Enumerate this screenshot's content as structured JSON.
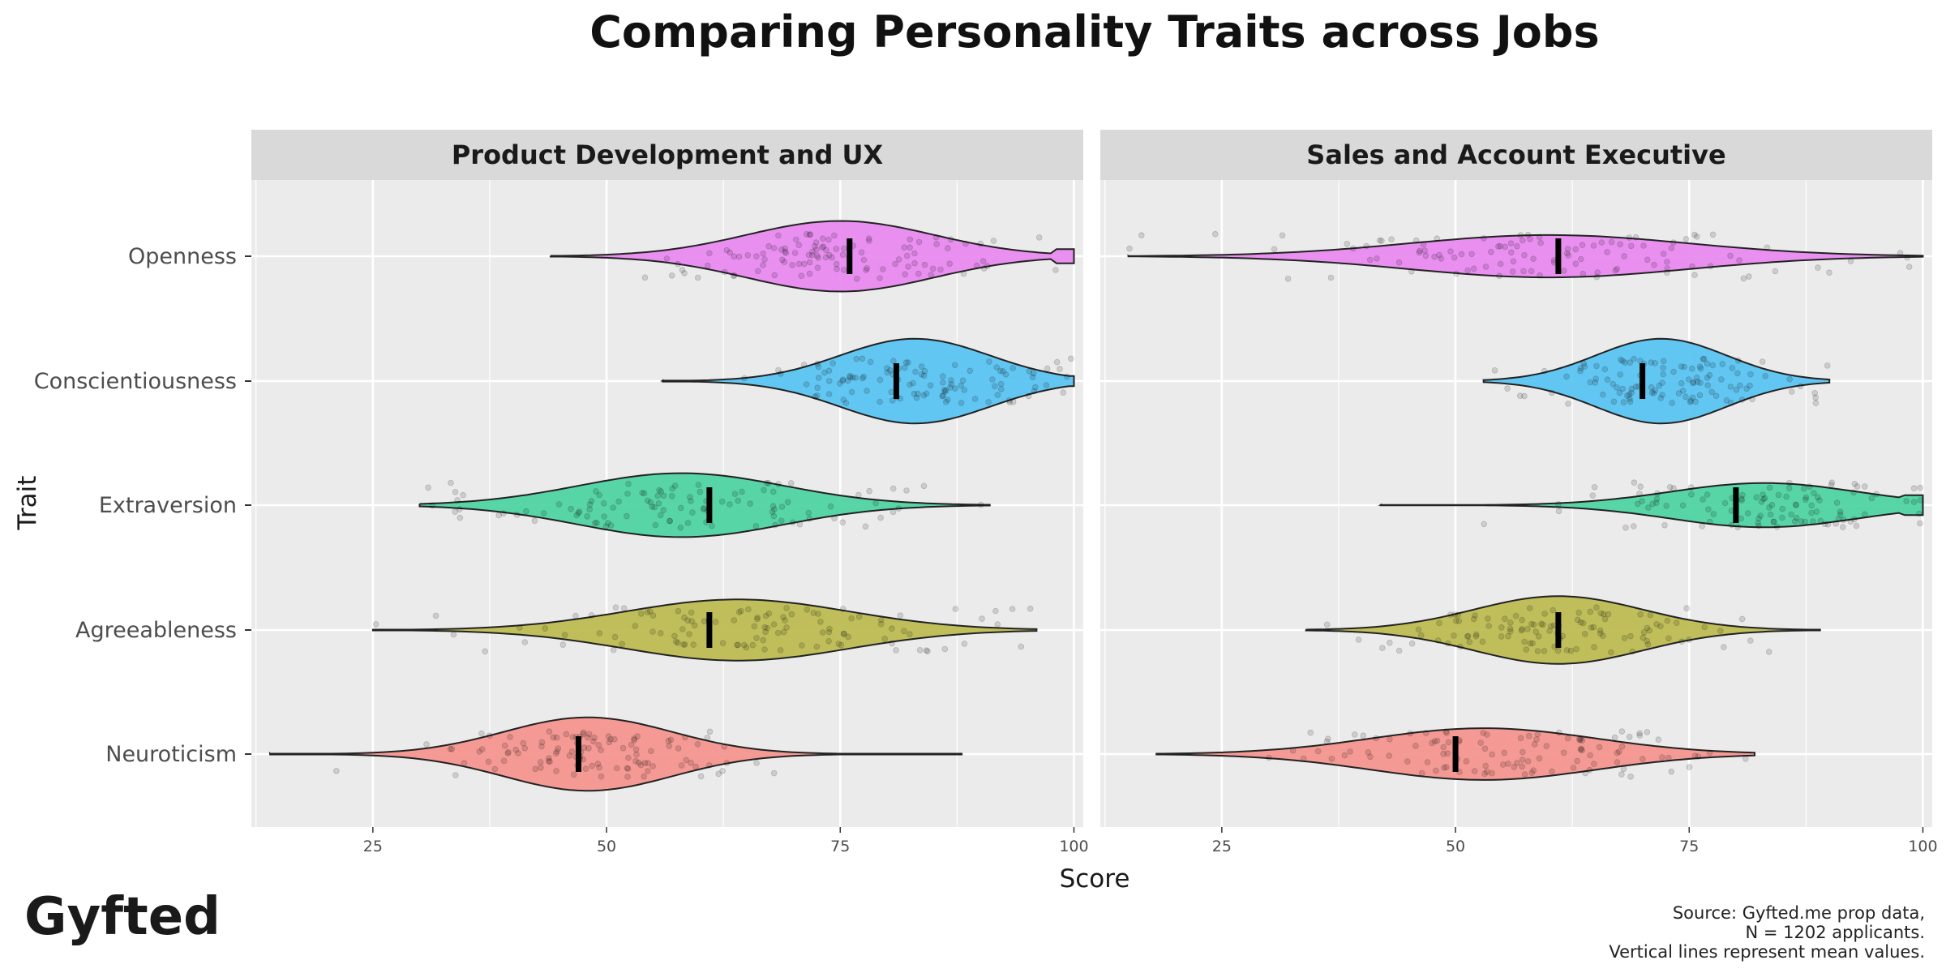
{
  "chart_data": {
    "type": "violin",
    "title": "Comparing Personality Traits across Jobs",
    "xlabel": "Score",
    "ylabel": "Trait",
    "xlim": [
      12,
      101
    ],
    "x_ticks": [
      25,
      50,
      75,
      100
    ],
    "grid": true,
    "categories": [
      "Openness",
      "Conscientiousness",
      "Extraversion",
      "Agreeableness",
      "Neuroticism"
    ],
    "colors": {
      "Openness": "#e98af0",
      "Conscientiousness": "#5bc4f2",
      "Extraversion": "#4fd4a2",
      "Agreeableness": "#bdbc52",
      "Neuroticism": "#f4958e"
    },
    "panels": [
      {
        "name": "Product Development and UX",
        "series": [
          {
            "trait": "Openness",
            "min": 44,
            "max": 100,
            "mean": 76,
            "peak": 75,
            "spread": 10,
            "width": 0.75,
            "right_edge": 0.2
          },
          {
            "trait": "Conscientiousness",
            "min": 56,
            "max": 100,
            "mean": 81,
            "peak": 83,
            "spread": 8,
            "width": 0.9,
            "right_edge": 0.12
          },
          {
            "trait": "Extraversion",
            "min": 30,
            "max": 91,
            "mean": 61,
            "peak": 58,
            "spread": 11,
            "width": 0.68
          },
          {
            "trait": "Agreeableness",
            "min": 25,
            "max": 96,
            "mean": 61,
            "peak": 64,
            "spread": 12,
            "width": 0.65
          },
          {
            "trait": "Neuroticism",
            "min": 14,
            "max": 88,
            "mean": 47,
            "peak": 48,
            "spread": 9,
            "width": 0.78
          }
        ]
      },
      {
        "name": "Sales and Account Executive",
        "series": [
          {
            "trait": "Openness",
            "min": 15,
            "max": 100,
            "mean": 61,
            "peak": 60,
            "spread": 15,
            "width": 0.45
          },
          {
            "trait": "Conscientiousness",
            "min": 53,
            "max": 90,
            "mean": 70,
            "peak": 72,
            "spread": 7,
            "width": 0.9
          },
          {
            "trait": "Extraversion",
            "min": 42,
            "max": 100,
            "mean": 80,
            "peak": 83,
            "spread": 10,
            "width": 0.47,
            "right_edge": 0.45
          },
          {
            "trait": "Agreeableness",
            "min": 34,
            "max": 89,
            "mean": 61,
            "peak": 61,
            "spread": 9,
            "width": 0.72
          },
          {
            "trait": "Neuroticism",
            "min": 18,
            "max": 82,
            "mean": 50,
            "peak": 53,
            "spread": 12,
            "width": 0.55
          }
        ]
      }
    ]
  },
  "brand": {
    "logo_text": "Gyfted"
  },
  "caption": {
    "line1": "Source: Gyfted.me prop data,",
    "line2": "N = 1202 applicants.",
    "line3": "Vertical lines represent mean values."
  }
}
